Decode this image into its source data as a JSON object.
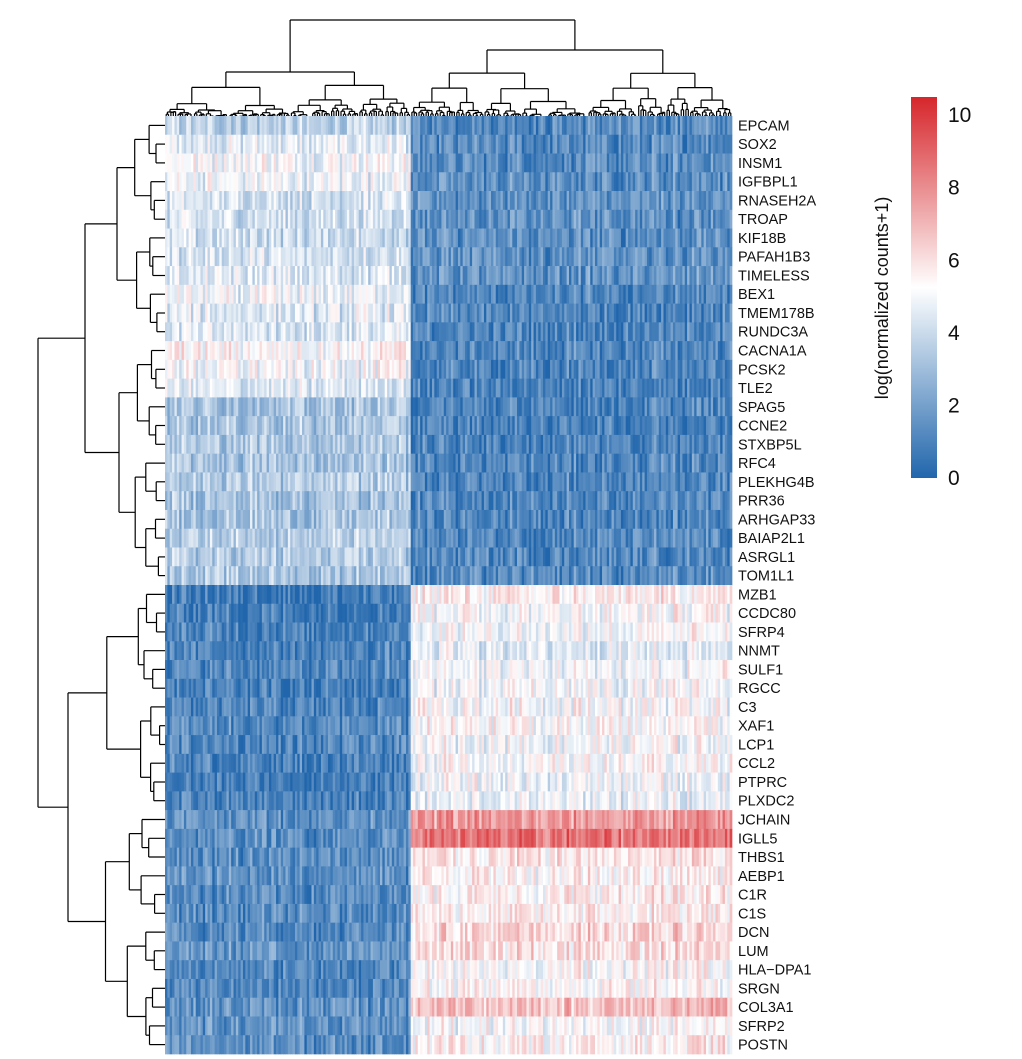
{
  "chart_data": {
    "type": "heatmap",
    "title": "",
    "xlabel": "",
    "ylabel": "",
    "color_scale": {
      "title": "log(normalized counts+1)",
      "min": 0,
      "max": 10.5,
      "ticks": [
        "0",
        "2",
        "4",
        "6",
        "8",
        "10"
      ],
      "tick_values": [
        0,
        2,
        4,
        6,
        8,
        10
      ],
      "colors": [
        "#2166ac",
        "#ffffff",
        "#d6262b"
      ]
    },
    "row_dendrogram": true,
    "column_dendrogram": true,
    "sample_count": 240,
    "column_groups": [
      {
        "samples": 104,
        "description": "left cluster"
      },
      {
        "samples": 136,
        "description": "right cluster"
      }
    ],
    "rows": [
      {
        "gene": "EPCAM",
        "group_means": [
          3.6,
          1.3
        ]
      },
      {
        "gene": "SOX2",
        "group_means": [
          4.6,
          1.2
        ]
      },
      {
        "gene": "INSM1",
        "group_means": [
          5.2,
          1.3
        ]
      },
      {
        "gene": "IGFBPL1",
        "group_means": [
          4.9,
          1.4
        ]
      },
      {
        "gene": "RNASEH2A",
        "group_means": [
          4.3,
          1.5
        ]
      },
      {
        "gene": "TROAP",
        "group_means": [
          4.2,
          1.5
        ]
      },
      {
        "gene": "KIF18B",
        "group_means": [
          4.1,
          1.4
        ]
      },
      {
        "gene": "PAFAH1B3",
        "group_means": [
          4.3,
          1.5
        ]
      },
      {
        "gene": "TIMELESS",
        "group_means": [
          4.4,
          1.5
        ]
      },
      {
        "gene": "BEX1",
        "group_means": [
          4.8,
          1.0
        ]
      },
      {
        "gene": "TMEM178B",
        "group_means": [
          4.5,
          1.1
        ]
      },
      {
        "gene": "RUNDC3A",
        "group_means": [
          4.4,
          1.1
        ]
      },
      {
        "gene": "CACNA1A",
        "group_means": [
          5.4,
          1.1
        ]
      },
      {
        "gene": "PCSK2",
        "group_means": [
          5.0,
          1.0
        ]
      },
      {
        "gene": "TLE2",
        "group_means": [
          4.4,
          1.0
        ]
      },
      {
        "gene": "SPAG5",
        "group_means": [
          3.2,
          1.0
        ]
      },
      {
        "gene": "CCNE2",
        "group_means": [
          3.3,
          1.0
        ]
      },
      {
        "gene": "STXBP5L",
        "group_means": [
          3.4,
          1.0
        ]
      },
      {
        "gene": "RFC4",
        "group_means": [
          3.2,
          1.1
        ]
      },
      {
        "gene": "PLEKHG4B",
        "group_means": [
          3.5,
          1.1
        ]
      },
      {
        "gene": "PRR36",
        "group_means": [
          3.2,
          1.1
        ]
      },
      {
        "gene": "ARHGAP33",
        "group_means": [
          3.2,
          1.1
        ]
      },
      {
        "gene": "BAIAP2L1",
        "group_means": [
          3.6,
          1.2
        ]
      },
      {
        "gene": "ASRGL1",
        "group_means": [
          3.4,
          1.2
        ]
      },
      {
        "gene": "TOM1L1",
        "group_means": [
          3.3,
          1.2
        ]
      },
      {
        "gene": "MZB1",
        "group_means": [
          0.7,
          5.6
        ]
      },
      {
        "gene": "CCDC80",
        "group_means": [
          0.9,
          5.2
        ]
      },
      {
        "gene": "SFRP4",
        "group_means": [
          1.0,
          5.1
        ]
      },
      {
        "gene": "NNMT",
        "group_means": [
          1.0,
          4.6
        ]
      },
      {
        "gene": "SULF1",
        "group_means": [
          1.1,
          5.0
        ]
      },
      {
        "gene": "RGCC",
        "group_means": [
          0.8,
          5.0
        ]
      },
      {
        "gene": "C3",
        "group_means": [
          1.0,
          5.2
        ]
      },
      {
        "gene": "XAF1",
        "group_means": [
          1.2,
          5.3
        ]
      },
      {
        "gene": "LCP1",
        "group_means": [
          1.1,
          5.1
        ]
      },
      {
        "gene": "CCL2",
        "group_means": [
          1.0,
          5.2
        ]
      },
      {
        "gene": "PTPRC",
        "group_means": [
          0.8,
          4.9
        ]
      },
      {
        "gene": "PLXDC2",
        "group_means": [
          0.9,
          4.8
        ]
      },
      {
        "gene": "JCHAIN",
        "group_means": [
          1.6,
          7.6
        ]
      },
      {
        "gene": "IGLL5",
        "group_means": [
          1.4,
          8.6
        ]
      },
      {
        "gene": "THBS1",
        "group_means": [
          1.4,
          5.8
        ]
      },
      {
        "gene": "AEBP1",
        "group_means": [
          1.5,
          5.6
        ]
      },
      {
        "gene": "C1R",
        "group_means": [
          1.3,
          5.6
        ]
      },
      {
        "gene": "C1S",
        "group_means": [
          1.3,
          5.6
        ]
      },
      {
        "gene": "DCN",
        "group_means": [
          1.3,
          6.2
        ]
      },
      {
        "gene": "LUM",
        "group_means": [
          1.6,
          6.0
        ]
      },
      {
        "gene": "HLA−DPA1",
        "group_means": [
          1.2,
          5.3
        ]
      },
      {
        "gene": "SRGN",
        "group_means": [
          1.2,
          5.4
        ]
      },
      {
        "gene": "COL3A1",
        "group_means": [
          1.5,
          6.8
        ]
      },
      {
        "gene": "SFRP2",
        "group_means": [
          1.5,
          5.2
        ]
      },
      {
        "gene": "POSTN",
        "group_means": [
          1.4,
          5.6
        ]
      }
    ]
  }
}
